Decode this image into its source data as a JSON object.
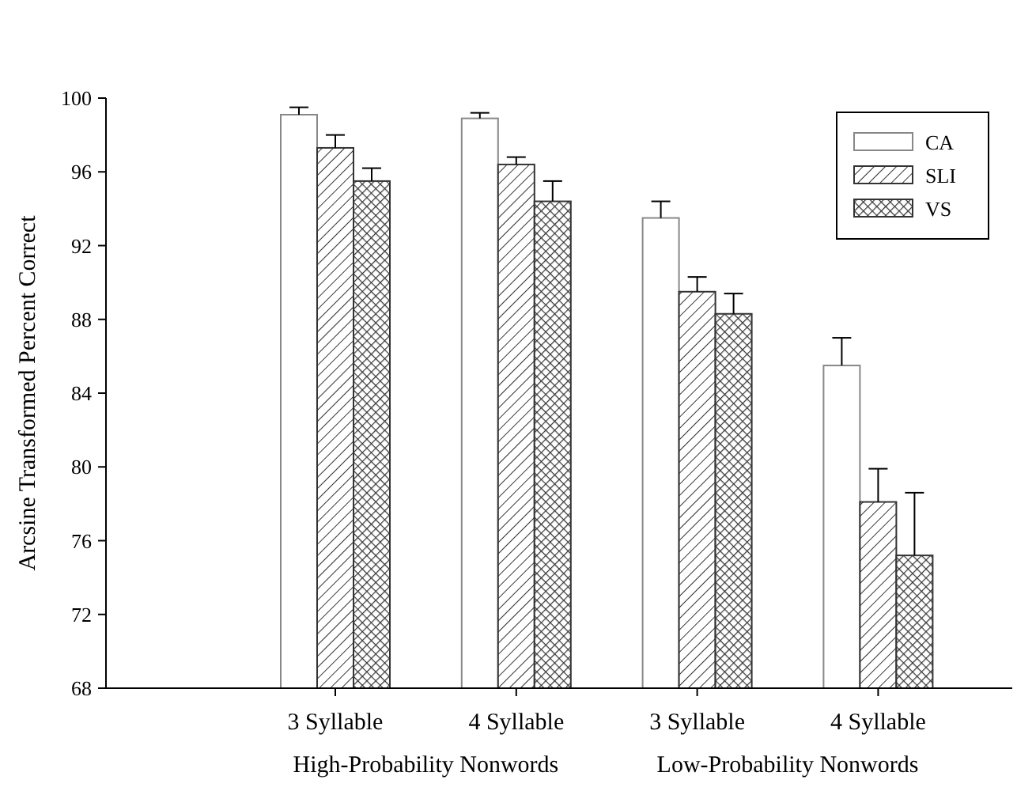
{
  "chart_data": {
    "type": "bar",
    "ylabel": "Arcsine Transformed Percent Correct",
    "categories": [
      "3 Syllable",
      "4 Syllable",
      "3 Syllable",
      "4 Syllable"
    ],
    "annotations": [
      "High-Probability Nonwords",
      "Low-Probability Nonwords"
    ],
    "series": [
      {
        "name": "CA",
        "color": "#ffffff",
        "values": [
          99.1,
          98.9,
          93.5,
          85.5
        ],
        "errors": [
          0.4,
          0.3,
          0.9,
          1.5
        ]
      },
      {
        "name": "SLI",
        "color": "#333333",
        "values": [
          97.3,
          96.4,
          89.5,
          78.1
        ],
        "errors": [
          0.7,
          0.4,
          0.8,
          1.8
        ]
      },
      {
        "name": "VS",
        "color": "#333333",
        "values": [
          95.5,
          94.4,
          88.3,
          75.2
        ],
        "errors": [
          0.7,
          1.1,
          1.1,
          3.4
        ]
      }
    ],
    "ylim": [
      68,
      100
    ],
    "yticks": [
      68,
      72,
      76,
      80,
      84,
      88,
      92,
      96,
      100
    ],
    "legend": "top right"
  }
}
